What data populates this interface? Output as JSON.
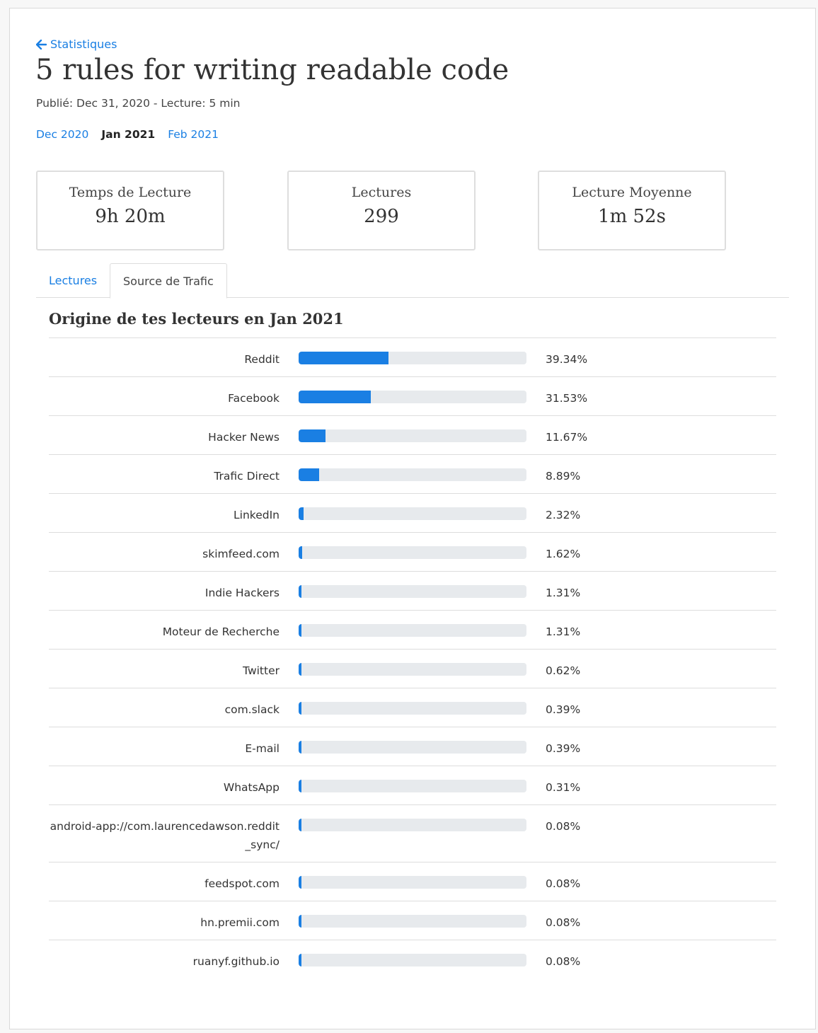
{
  "nav": {
    "back_label": "Statistiques"
  },
  "article": {
    "title": "5 rules for writing readable code",
    "meta": "Publié: Dec 31, 2020 - Lecture: 5 min"
  },
  "months": {
    "prev": "Dec 2020",
    "current": "Jan 2021",
    "next": "Feb 2021"
  },
  "stats": [
    {
      "label": "Temps de Lecture",
      "value": "9h 20m"
    },
    {
      "label": "Lectures",
      "value": "299"
    },
    {
      "label": "Lecture Moyenne",
      "value": "1m 52s"
    }
  ],
  "tabs": {
    "reads": "Lectures",
    "traffic": "Source de Trafic"
  },
  "section_title": "Origine de tes lecteurs en Jan 2021",
  "colors": {
    "accent": "#1a7fe3",
    "track": "#e7eaed"
  },
  "sources": [
    {
      "name": "Reddit",
      "percent": "39.34%",
      "value": 39.34
    },
    {
      "name": "Facebook",
      "percent": "31.53%",
      "value": 31.53
    },
    {
      "name": "Hacker News",
      "percent": "11.67%",
      "value": 11.67
    },
    {
      "name": "Trafic Direct",
      "percent": "8.89%",
      "value": 8.89
    },
    {
      "name": "LinkedIn",
      "percent": "2.32%",
      "value": 2.32
    },
    {
      "name": "skimfeed.com",
      "percent": "1.62%",
      "value": 1.62
    },
    {
      "name": "Indie Hackers",
      "percent": "1.31%",
      "value": 1.31
    },
    {
      "name": "Moteur de Recherche",
      "percent": "1.31%",
      "value": 1.31
    },
    {
      "name": "Twitter",
      "percent": "0.62%",
      "value": 0.62
    },
    {
      "name": "com.slack",
      "percent": "0.39%",
      "value": 0.39
    },
    {
      "name": "E-mail",
      "percent": "0.39%",
      "value": 0.39
    },
    {
      "name": "WhatsApp",
      "percent": "0.31%",
      "value": 0.31
    },
    {
      "name": "android-app://com.laurencedawson.reddit_sync/",
      "percent": "0.08%",
      "value": 0.08
    },
    {
      "name": "feedspot.com",
      "percent": "0.08%",
      "value": 0.08
    },
    {
      "name": "hn.premii.com",
      "percent": "0.08%",
      "value": 0.08
    },
    {
      "name": "ruanyf.github.io",
      "percent": "0.08%",
      "value": 0.08
    }
  ]
}
